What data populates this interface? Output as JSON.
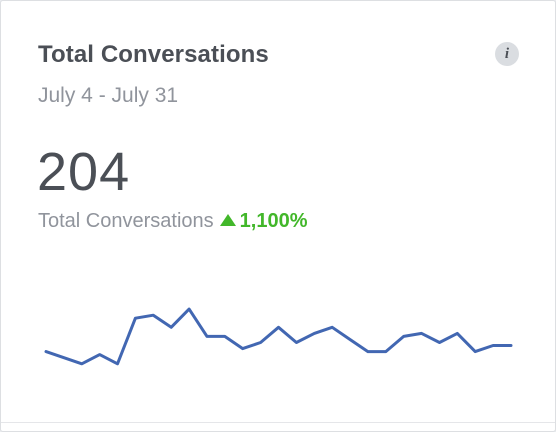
{
  "card": {
    "title": "Total Conversations",
    "date_range": "July 4 - July 31",
    "info_label": "i",
    "value": "204",
    "metric_label": "Total Conversations",
    "change": "1,100%",
    "change_direction": "up",
    "change_color": "#42b72a",
    "line_color": "#4267b2"
  },
  "chart_data": {
    "type": "line",
    "title": "",
    "xlabel": "",
    "ylabel": "",
    "grid": false,
    "legend": "none",
    "ylim": [
      0,
      14
    ],
    "series": [
      {
        "values": [
          5.5,
          4.5,
          3.5,
          5,
          3.5,
          11,
          11.5,
          9.5,
          12.5,
          8,
          8,
          6,
          7,
          9.5,
          7,
          8.5,
          9.5,
          7.5,
          5.5,
          5.5,
          8,
          8.5,
          7,
          8.5,
          5.5,
          6.5,
          6.5
        ]
      }
    ]
  }
}
